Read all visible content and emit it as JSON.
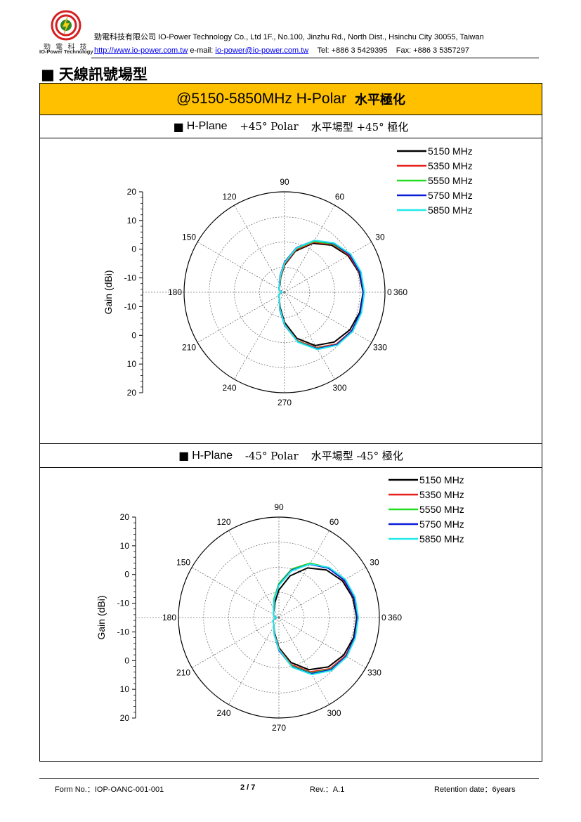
{
  "header": {
    "logo": {
      "name_cn": "勁 電 科 技",
      "name_en": "IO-Power Technology"
    },
    "company_line": "勁電科技有限公司 IO-Power Technology Co., Ltd 1F., No.100, Jinzhu Rd., North Dist., Hsinchu City 30055, Taiwan",
    "website": "http://www.io-power.com.tw",
    "email_label": "e-mail:",
    "email": "io-power@io-power.com.tw",
    "tel": "Tel: +886 3 5429395",
    "fax": "Fax: +886 3 5357297"
  },
  "section_title": "天線訊號場型",
  "band_title": "@5150-5850MHz H-Polar",
  "band_title_zh": "水平極化",
  "charts_headers": [
    {
      "plane": "H-Plane",
      "polar": "+45° Polar",
      "desc": "水平場型 +45° 極化"
    },
    {
      "plane": "H-Plane",
      "polar": "-45° Polar",
      "desc": "水平場型 -45° 極化"
    }
  ],
  "colors": {
    "band_bg": "#ffc000",
    "series": [
      "#000000",
      "#e8201a",
      "#22dd22",
      "#0a1ed8",
      "#22e8e8"
    ]
  },
  "chart_data": [
    {
      "type": "polar-line",
      "ylabel": "Gain (dBi)",
      "radial_ticks": [
        20,
        10,
        0,
        -10,
        -10,
        0,
        10,
        20
      ],
      "radial_range_dbi": [
        -20,
        20
      ],
      "angle_ticks_deg": [
        0,
        30,
        60,
        90,
        120,
        150,
        180,
        210,
        240,
        270,
        300,
        330,
        360
      ],
      "legend_position": "top-right",
      "series": [
        {
          "name": "5150 MHz",
          "angles_deg": [
            0,
            15,
            30,
            45,
            60,
            75,
            90,
            105,
            120,
            135,
            150,
            165,
            180,
            195,
            210,
            225,
            240,
            255,
            270,
            285,
            300,
            315,
            330,
            345
          ],
          "gain_dbi": [
            11.3,
            10.7,
            9.2,
            6.5,
            2.5,
            -3.0,
            -9.2,
            -14.0,
            -16.5,
            -17.0,
            -17.5,
            -18.0,
            -19.0,
            -18.0,
            -17.3,
            -17.0,
            -16.0,
            -13.5,
            -8.0,
            -1.0,
            4.5,
            8.0,
            10.0,
            11.0
          ]
        },
        {
          "name": "5350 MHz",
          "angles_deg": [
            0,
            15,
            30,
            45,
            60,
            75,
            90,
            105,
            120,
            135,
            150,
            165,
            180,
            195,
            210,
            225,
            240,
            255,
            270,
            285,
            300,
            315,
            330,
            345
          ],
          "gain_dbi": [
            11.5,
            11.0,
            9.6,
            7.0,
            3.0,
            -2.5,
            -8.8,
            -13.8,
            -16.3,
            -17.0,
            -17.5,
            -18.0,
            -19.0,
            -18.0,
            -17.3,
            -17.0,
            -16.0,
            -13.0,
            -7.2,
            0.0,
            5.5,
            9.2,
            10.8,
            11.4
          ]
        },
        {
          "name": "5550 MHz",
          "angles_deg": [
            0,
            15,
            30,
            45,
            60,
            75,
            90,
            105,
            120,
            135,
            150,
            165,
            180,
            195,
            210,
            225,
            240,
            255,
            270,
            285,
            300,
            315,
            330,
            345
          ],
          "gain_dbi": [
            11.6,
            11.2,
            10.0,
            7.3,
            3.4,
            -2.0,
            -8.4,
            -13.5,
            -16.2,
            -17.0,
            -17.5,
            -18.0,
            -19.0,
            -18.0,
            -17.3,
            -17.0,
            -16.0,
            -13.0,
            -7.0,
            0.3,
            5.8,
            9.5,
            11.0,
            11.5
          ]
        },
        {
          "name": "5750 MHz",
          "angles_deg": [
            0,
            15,
            30,
            45,
            60,
            75,
            90,
            105,
            120,
            135,
            150,
            165,
            180,
            195,
            210,
            225,
            240,
            255,
            270,
            285,
            300,
            315,
            330,
            345
          ],
          "gain_dbi": [
            11.4,
            11.1,
            10.0,
            7.6,
            3.8,
            -1.6,
            -8.0,
            -13.2,
            -16.0,
            -17.0,
            -17.5,
            -18.0,
            -19.0,
            -18.0,
            -17.3,
            -17.0,
            -16.0,
            -12.8,
            -7.0,
            0.5,
            6.0,
            9.5,
            10.9,
            11.3
          ]
        },
        {
          "name": "5850 MHz",
          "angles_deg": [
            0,
            15,
            30,
            45,
            60,
            75,
            90,
            105,
            120,
            135,
            150,
            165,
            180,
            195,
            210,
            225,
            240,
            255,
            270,
            285,
            300,
            315,
            330,
            345
          ],
          "gain_dbi": [
            11.8,
            11.5,
            10.4,
            7.8,
            3.8,
            -1.8,
            -8.3,
            -13.4,
            -16.2,
            -17.0,
            -17.5,
            -18.0,
            -19.0,
            -18.0,
            -17.3,
            -17.0,
            -16.0,
            -13.0,
            -7.2,
            0.6,
            6.3,
            9.8,
            11.3,
            11.7
          ]
        }
      ]
    },
    {
      "type": "polar-line",
      "ylabel": "Gain (dBi)",
      "radial_ticks": [
        20,
        10,
        0,
        -10,
        -10,
        0,
        10,
        20
      ],
      "radial_range_dbi": [
        -20,
        20
      ],
      "angle_ticks_deg": [
        0,
        30,
        60,
        90,
        120,
        150,
        180,
        210,
        240,
        270,
        300,
        330,
        360
      ],
      "legend_position": "top-right",
      "series": [
        {
          "name": "5150 MHz",
          "angles_deg": [
            0,
            15,
            30,
            45,
            60,
            75,
            90,
            105,
            120,
            135,
            150,
            165,
            180,
            195,
            210,
            225,
            240,
            255,
            270,
            285,
            300,
            315,
            330,
            345
          ],
          "gain_dbi": [
            11.0,
            10.5,
            9.2,
            6.8,
            2.8,
            -2.8,
            -9.0,
            -13.8,
            -16.3,
            -17.0,
            -17.5,
            -18.0,
            -19.0,
            -18.0,
            -17.3,
            -17.0,
            -16.0,
            -13.5,
            -8.0,
            -1.5,
            4.0,
            7.8,
            9.8,
            10.8
          ]
        },
        {
          "name": "5350 MHz",
          "angles_deg": [
            0,
            15,
            30,
            45,
            60,
            75,
            90,
            105,
            120,
            135,
            150,
            165,
            180,
            195,
            210,
            225,
            240,
            255,
            270,
            285,
            300,
            315,
            330,
            345
          ],
          "gain_dbi": [
            11.3,
            10.9,
            9.8,
            8.0,
            5.0,
            0.0,
            -6.5,
            -12.5,
            -15.8,
            -17.0,
            -17.5,
            -18.0,
            -19.0,
            -18.0,
            -17.3,
            -17.0,
            -16.0,
            -13.2,
            -7.5,
            -0.5,
            5.0,
            8.8,
            10.6,
            11.2
          ]
        },
        {
          "name": "5550 MHz",
          "angles_deg": [
            0,
            15,
            30,
            45,
            60,
            75,
            90,
            105,
            120,
            135,
            150,
            165,
            180,
            195,
            210,
            225,
            240,
            255,
            270,
            285,
            300,
            315,
            330,
            345
          ],
          "gain_dbi": [
            11.5,
            11.2,
            10.0,
            8.0,
            5.0,
            0.0,
            -6.5,
            -12.3,
            -15.8,
            -17.0,
            -17.5,
            -18.0,
            -19.0,
            -18.0,
            -17.3,
            -17.0,
            -16.0,
            -13.0,
            -7.2,
            0.0,
            5.5,
            9.2,
            11.0,
            11.4
          ]
        },
        {
          "name": "5750 MHz",
          "angles_deg": [
            0,
            15,
            30,
            45,
            60,
            75,
            90,
            105,
            120,
            135,
            150,
            165,
            180,
            195,
            210,
            225,
            240,
            255,
            270,
            285,
            300,
            315,
            330,
            345
          ],
          "gain_dbi": [
            11.3,
            11.0,
            10.0,
            7.8,
            4.5,
            -0.5,
            -7.0,
            -12.8,
            -15.9,
            -17.0,
            -17.5,
            -18.0,
            -19.0,
            -18.0,
            -17.3,
            -17.0,
            -16.0,
            -13.0,
            -7.0,
            0.3,
            5.8,
            9.4,
            10.9,
            11.2
          ]
        },
        {
          "name": "5850 MHz",
          "angles_deg": [
            0,
            15,
            30,
            45,
            60,
            75,
            90,
            105,
            120,
            135,
            150,
            165,
            180,
            195,
            210,
            225,
            240,
            255,
            270,
            285,
            300,
            315,
            330,
            345
          ],
          "gain_dbi": [
            11.6,
            11.4,
            10.5,
            8.2,
            4.6,
            -0.8,
            -7.2,
            -12.8,
            -15.9,
            -17.0,
            -17.5,
            -18.0,
            -19.0,
            -18.0,
            -17.3,
            -17.0,
            -16.0,
            -13.0,
            -7.3,
            0.5,
            6.2,
            9.8,
            11.2,
            11.5
          ]
        }
      ]
    }
  ],
  "footer": {
    "form_no": "Form No.：IOP-OANC-001-001",
    "page": "2 / 7",
    "rev": "Rev.：A.1",
    "retention": "Retention date：6years"
  }
}
